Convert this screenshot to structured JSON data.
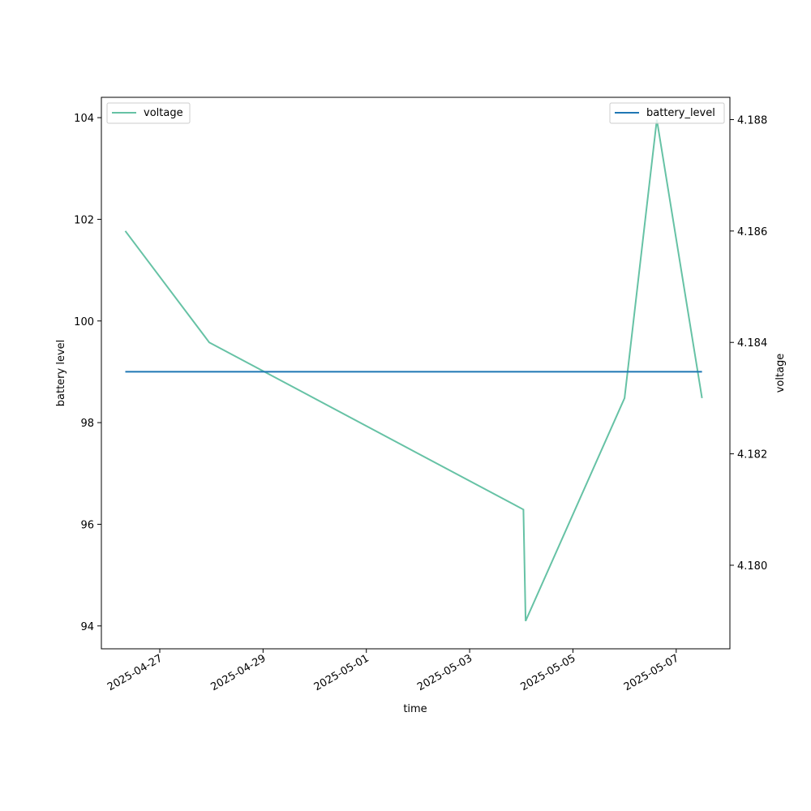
{
  "chart_data": {
    "type": "line",
    "xlabel": "time",
    "ylabel_left": "battery level",
    "ylabel_right": "voltage",
    "xlim": [
      "2025-04-25T20:52:00",
      "2025-05-08T00:57:00"
    ],
    "ylim_left": [
      93.55,
      104.4
    ],
    "ylim_right": [
      4.1785,
      4.1884
    ],
    "x_ticks": [
      "2025-04-27",
      "2025-04-29",
      "2025-05-01",
      "2025-05-03",
      "2025-05-05",
      "2025-05-07"
    ],
    "y_ticks_left": [
      94,
      96,
      98,
      100,
      102,
      104
    ],
    "y_ticks_right": [
      "4.180",
      "4.182",
      "4.184",
      "4.186",
      "4.188"
    ],
    "series": [
      {
        "name": "voltage",
        "axis": "right",
        "color": "#66c2a5",
        "points": [
          {
            "x": "2025-04-26T08:00:00",
            "y": 4.186
          },
          {
            "x": "2025-04-27T23:00:00",
            "y": 4.184
          },
          {
            "x": "2025-05-04T01:00:00",
            "y": 4.181
          },
          {
            "x": "2025-05-04T02:00:00",
            "y": 4.179
          },
          {
            "x": "2025-05-06T00:00:00",
            "y": 4.183
          },
          {
            "x": "2025-05-06T15:00:00",
            "y": 4.188
          },
          {
            "x": "2025-05-07T12:00:00",
            "y": 4.183
          }
        ]
      },
      {
        "name": "battery_level",
        "axis": "left",
        "color": "#1f77b4",
        "points": [
          {
            "x": "2025-04-26T08:00:00",
            "y": 99
          },
          {
            "x": "2025-05-07T12:00:00",
            "y": 99
          }
        ]
      }
    ],
    "legends": [
      {
        "placement": "upper-left",
        "entries": [
          "voltage"
        ]
      },
      {
        "placement": "upper-right",
        "entries": [
          "battery_level"
        ]
      }
    ]
  }
}
